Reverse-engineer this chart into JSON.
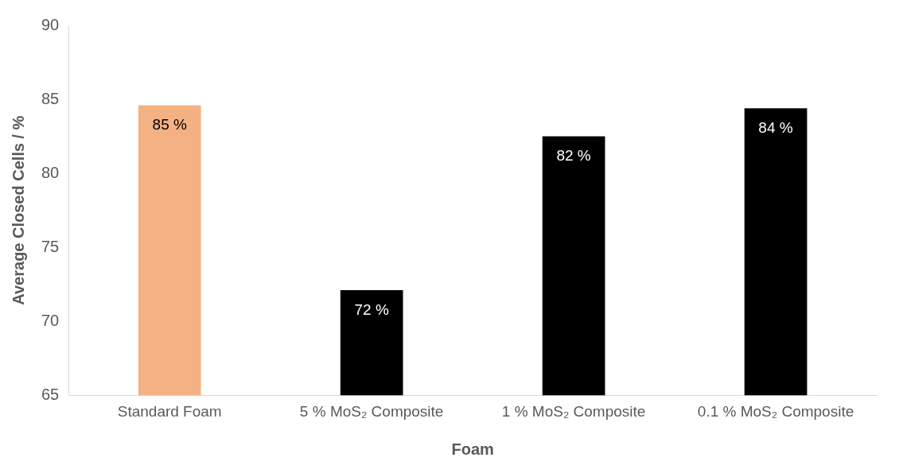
{
  "chart_data": {
    "type": "bar",
    "xlabel": "Foam",
    "ylabel": "Average Closed Cells / %",
    "categories": [
      "Standard Foam",
      "5 % MoS₂ Composite",
      "1 % MoS₂ Composite",
      "0.1 % MoS₂ Composite"
    ],
    "values": [
      84.6,
      72.1,
      82.5,
      84.4
    ],
    "colors": [
      "#f4b183",
      "#000000",
      "#000000",
      "#000000"
    ],
    "value_labels": [
      "85 %",
      "72 %",
      "82 %",
      "84 %"
    ],
    "ylim": [
      65,
      90
    ],
    "yticks": [
      65,
      70,
      75,
      80,
      85,
      90
    ],
    "grid": false,
    "legend": false
  }
}
